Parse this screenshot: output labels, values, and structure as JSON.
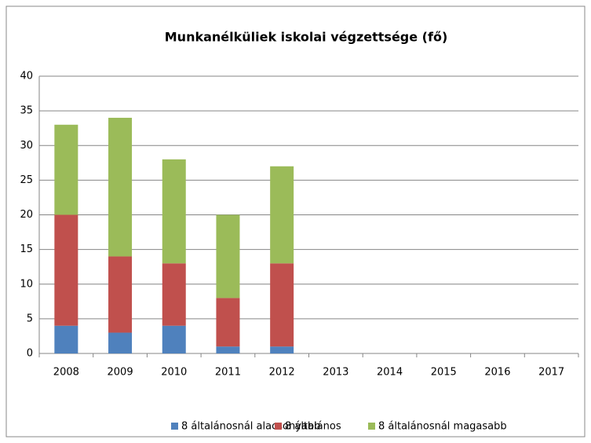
{
  "chart_data": {
    "type": "stacked_bar",
    "title": "Munkanélküliek iskolai végzettsége (fő)",
    "categories": [
      "2008",
      "2009",
      "2010",
      "2011",
      "2012",
      "2013",
      "2014",
      "2015",
      "2016",
      "2017"
    ],
    "series": [
      {
        "name": "8 általánosnál alacsonyabb",
        "color": "#4f81bd",
        "values": [
          4,
          3,
          4,
          1,
          1,
          null,
          null,
          null,
          null,
          null
        ]
      },
      {
        "name": "8 általános",
        "color": "#c0504d",
        "values": [
          16,
          11,
          9,
          7,
          12,
          null,
          null,
          null,
          null,
          null
        ]
      },
      {
        "name": "8 általánosnál magasabb",
        "color": "#9bbb59",
        "values": [
          13,
          20,
          15,
          12,
          14,
          null,
          null,
          null,
          null,
          null
        ]
      }
    ],
    "ylim": [
      0,
      40
    ],
    "yticks": [
      0,
      5,
      10,
      15,
      20,
      25,
      30,
      35,
      40
    ],
    "grid": true,
    "legend": "bottom"
  }
}
